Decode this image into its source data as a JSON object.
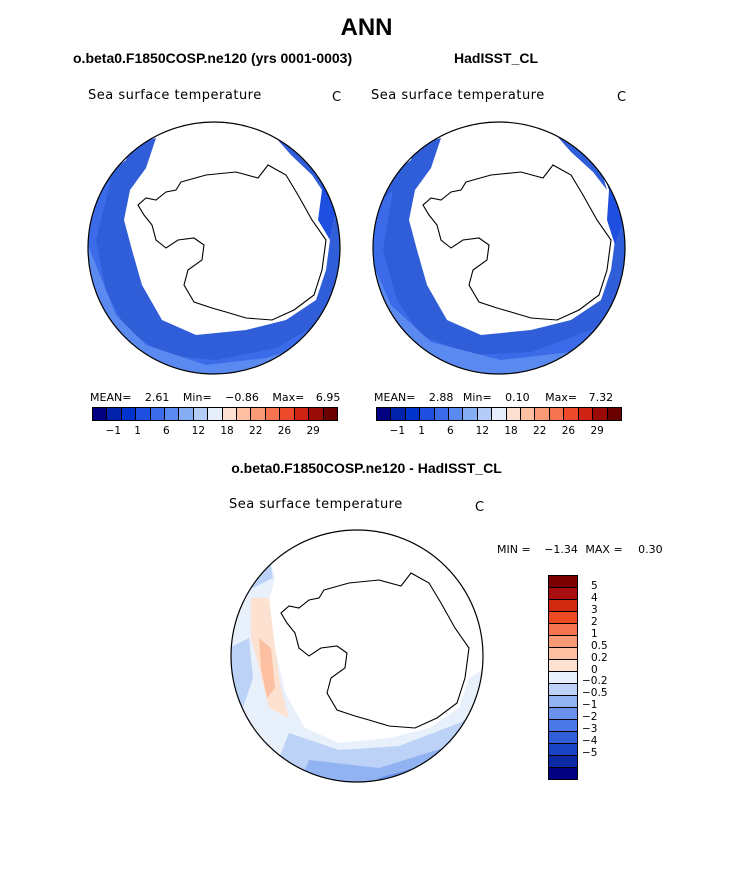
{
  "figure": {
    "title": "ANN",
    "panels": [
      {
        "subtitle": "o.beta0.F1850COSP.ne120 (yrs 0001-0003)",
        "variable": "Sea surface temperature",
        "units": "C",
        "mean_label": "MEAN=",
        "mean": "2.61",
        "min_label": "Min=",
        "min": "−0.86",
        "max_label": "Max=",
        "max": "6.95"
      },
      {
        "subtitle": "HadISST_CL",
        "variable": "Sea surface temperature",
        "units": "C",
        "mean_label": "MEAN=",
        "mean": "2.88",
        "min_label": "Min=",
        "min": "0.10",
        "max_label": "Max=",
        "max": "7.32"
      }
    ],
    "difference": {
      "subtitle": "o.beta0.F1850COSP.ne120 - HadISST_CL",
      "variable": "Sea surface temperature",
      "units": "C",
      "min_label": "MIN =",
      "min": "−1.34",
      "max_label": "MAX =",
      "max": "0.30"
    }
  },
  "abs_colorbar": {
    "colors": [
      "#000080",
      "#0022aa",
      "#0033cc",
      "#1f4fe0",
      "#3b6be8",
      "#5a8af0",
      "#86aef5",
      "#b4cdf8",
      "#e6eefc",
      "#fde0d2",
      "#fcbfa2",
      "#f99a77",
      "#f5734f",
      "#ec4a2a",
      "#cf2414",
      "#9a0a06",
      "#6a0000"
    ],
    "tick_labels": [
      "−1",
      "1",
      "6",
      "12",
      "18",
      "22",
      "26",
      "29"
    ]
  },
  "diff_colorbar": {
    "colors": [
      "#7a0000",
      "#a80e0e",
      "#cf2a10",
      "#ec4a22",
      "#f5734f",
      "#f99a77",
      "#fcbfa2",
      "#fde2d2",
      "#e8f0fb",
      "#bcd3f7",
      "#92b3f2",
      "#6a92ec",
      "#4a78e6",
      "#2f5ed8",
      "#1a44c4",
      "#0d2aa6",
      "#000080"
    ],
    "tick_labels": [
      "5",
      "4",
      "3",
      "2",
      "1",
      "0.5",
      "0.2",
      "0",
      "−0.2",
      "−0.5",
      "−1",
      "−2",
      "−3",
      "−4",
      "−5"
    ]
  }
}
